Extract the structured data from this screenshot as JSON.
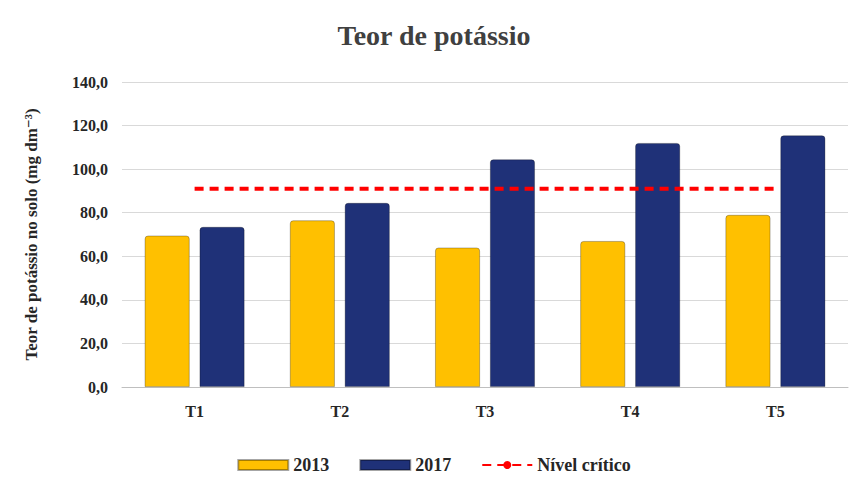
{
  "chart_data": {
    "type": "bar",
    "title": "Teor de potássio",
    "ylabel": "Teor de potássio no solo (mg dm⁻³)",
    "categories": [
      "T1",
      "T2",
      "T3",
      "T4",
      "T5"
    ],
    "series": [
      {
        "name": "2013",
        "color": "#FFC000",
        "values": [
          69.5,
          76.5,
          64.0,
          67.0,
          79.0
        ]
      },
      {
        "name": "2017",
        "color": "#1F3178",
        "values": [
          73.5,
          84.5,
          104.5,
          112.0,
          115.5
        ]
      },
      {
        "name": "Nível crítico",
        "type": "line",
        "color": "#FF0000",
        "line_style": "dashed",
        "values": [
          91.0,
          91.0,
          91.0,
          91.0,
          91.0
        ]
      }
    ],
    "ylim": [
      0,
      140
    ],
    "yticks": [
      {
        "value": 0,
        "label": "0,0"
      },
      {
        "value": 20,
        "label": "20,0"
      },
      {
        "value": 40,
        "label": "40,0"
      },
      {
        "value": 60,
        "label": "60,0"
      },
      {
        "value": 80,
        "label": "80,0"
      },
      {
        "value": 100,
        "label": "100,0"
      },
      {
        "value": 120,
        "label": "120,0"
      },
      {
        "value": 140,
        "label": "140,0"
      }
    ],
    "grid": true,
    "legend": "bottom"
  }
}
